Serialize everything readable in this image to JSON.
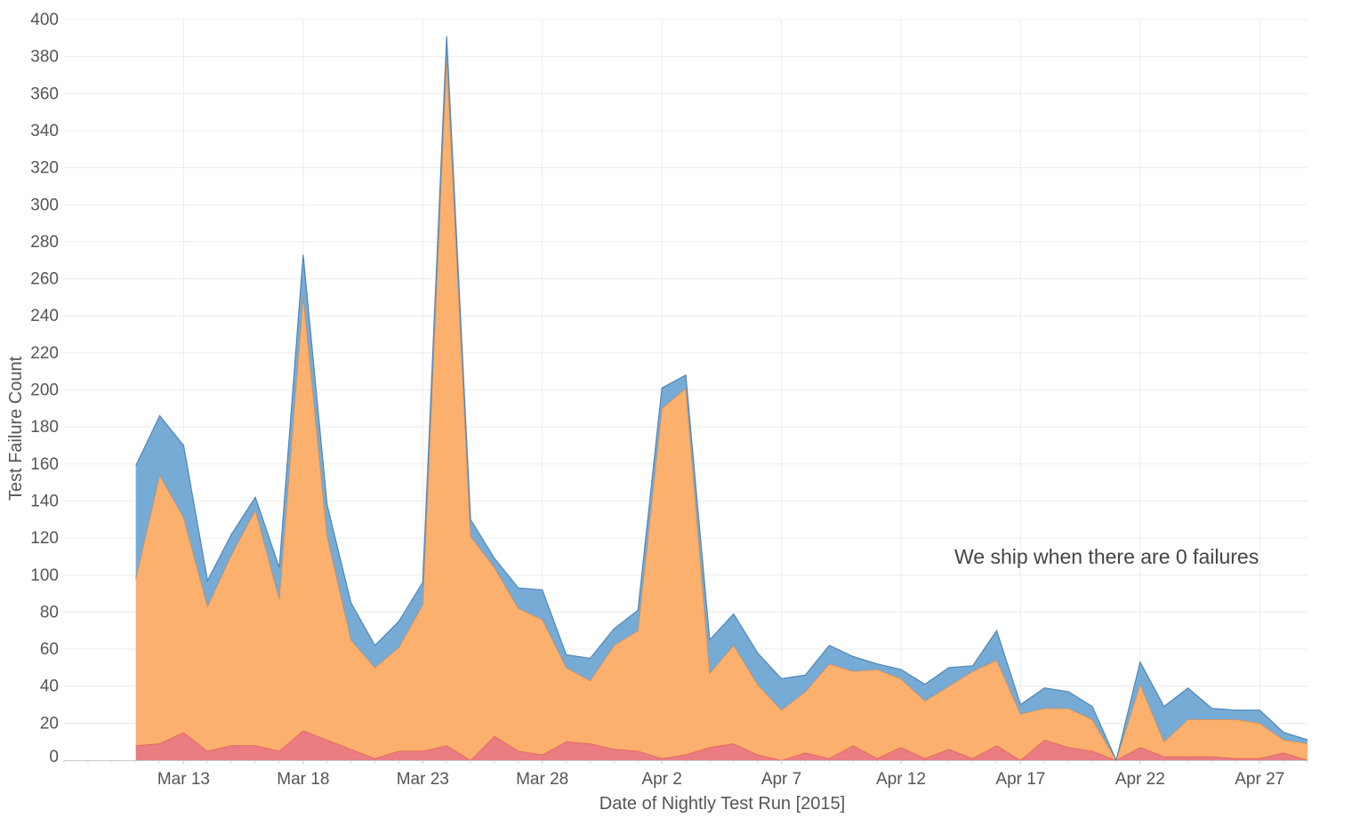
{
  "chart_data": {
    "type": "area",
    "stacked": true,
    "xlabel": "Date of Nightly Test Run [2015]",
    "ylabel": "Test Failure Count",
    "annotation": "We ship when there are 0 failures",
    "ylim": [
      0,
      400
    ],
    "xlim": [
      "2015-03-08",
      "2015-04-29"
    ],
    "y_ticks": [
      0,
      20,
      40,
      60,
      80,
      100,
      120,
      140,
      160,
      180,
      200,
      220,
      240,
      260,
      280,
      300,
      320,
      340,
      360,
      380,
      400
    ],
    "x_tick_labels": [
      {
        "date": "2015-03-13",
        "label": "Mar 13"
      },
      {
        "date": "2015-03-18",
        "label": "Mar 18"
      },
      {
        "date": "2015-03-23",
        "label": "Mar 23"
      },
      {
        "date": "2015-03-28",
        "label": "Mar 28"
      },
      {
        "date": "2015-04-02",
        "label": "Apr 2"
      },
      {
        "date": "2015-04-07",
        "label": "Apr 7"
      },
      {
        "date": "2015-04-12",
        "label": "Apr 12"
      },
      {
        "date": "2015-04-17",
        "label": "Apr 17"
      },
      {
        "date": "2015-04-22",
        "label": "Apr 22"
      },
      {
        "date": "2015-04-27",
        "label": "Apr 27"
      }
    ],
    "grid": true,
    "x": [
      "2015-03-11",
      "2015-03-12",
      "2015-03-13",
      "2015-03-14",
      "2015-03-15",
      "2015-03-16",
      "2015-03-17",
      "2015-03-18",
      "2015-03-19",
      "2015-03-20",
      "2015-03-21",
      "2015-03-22",
      "2015-03-23",
      "2015-03-24",
      "2015-03-25",
      "2015-03-26",
      "2015-03-27",
      "2015-03-28",
      "2015-03-29",
      "2015-03-30",
      "2015-03-31",
      "2015-04-01",
      "2015-04-02",
      "2015-04-03",
      "2015-04-04",
      "2015-04-05",
      "2015-04-06",
      "2015-04-07",
      "2015-04-08",
      "2015-04-09",
      "2015-04-10",
      "2015-04-11",
      "2015-04-12",
      "2015-04-13",
      "2015-04-14",
      "2015-04-15",
      "2015-04-16",
      "2015-04-17",
      "2015-04-18",
      "2015-04-19",
      "2015-04-20",
      "2015-04-21",
      "2015-04-22",
      "2015-04-23",
      "2015-04-24",
      "2015-04-25",
      "2015-04-26",
      "2015-04-27",
      "2015-04-28",
      "2015-04-29"
    ],
    "series": [
      {
        "color": "#e8767a",
        "values": [
          8,
          9,
          15,
          5,
          8,
          8,
          5,
          16,
          11,
          6,
          1,
          5,
          5,
          8,
          0,
          13,
          5,
          3,
          10,
          9,
          6,
          5,
          1,
          3,
          7,
          9,
          3,
          0,
          4,
          1,
          8,
          1,
          7,
          1,
          6,
          1,
          8,
          0,
          11,
          7,
          5,
          -2,
          7,
          2,
          2,
          2,
          1,
          1,
          4,
          0
        ]
      },
      {
        "color": "#fbac66",
        "values": [
          90,
          145,
          116,
          78,
          103,
          127,
          82,
          235,
          110,
          59,
          49,
          56,
          79,
          372,
          121,
          91,
          77,
          73,
          40,
          34,
          56,
          65,
          189,
          198,
          40,
          53,
          38,
          27,
          33,
          51,
          40,
          48,
          37,
          31,
          34,
          47,
          46,
          25,
          17,
          21,
          17,
          2,
          34,
          8,
          20,
          20,
          21,
          19,
          7,
          9
        ]
      },
      {
        "color": "#6fa6d3",
        "values": [
          61,
          32,
          39,
          14,
          11,
          7,
          17,
          22,
          17,
          20,
          12,
          14,
          12,
          11,
          9,
          5,
          11,
          16,
          7,
          12,
          9,
          11,
          11,
          7,
          18,
          17,
          17,
          17,
          9,
          10,
          8,
          3,
          5,
          9,
          10,
          3,
          16,
          5,
          11,
          9,
          7,
          0,
          12,
          19,
          17,
          6,
          5,
          7,
          4,
          2
        ]
      }
    ]
  }
}
